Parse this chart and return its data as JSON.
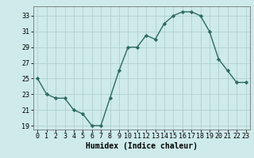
{
  "x": [
    0,
    1,
    2,
    3,
    4,
    5,
    6,
    7,
    8,
    9,
    10,
    11,
    12,
    13,
    14,
    15,
    16,
    17,
    18,
    19,
    20,
    21,
    22,
    23
  ],
  "y": [
    25,
    23,
    22.5,
    22.5,
    21,
    20.5,
    19,
    19,
    22.5,
    26,
    29,
    29,
    30.5,
    30,
    32,
    33,
    33.5,
    33.5,
    33,
    31,
    27.5,
    26,
    24.5,
    24.5
  ],
  "line_color": "#2d6b5e",
  "marker": "D",
  "marker_size": 2.2,
  "bg_color": "#ceeaea",
  "grid_color": "#b0d0d0",
  "xlabel": "Humidex (Indice chaleur)",
  "xlim": [
    -0.5,
    23.5
  ],
  "ylim": [
    18.5,
    34.2
  ],
  "yticks": [
    19,
    21,
    23,
    25,
    27,
    29,
    31,
    33
  ],
  "xticks": [
    0,
    1,
    2,
    3,
    4,
    5,
    6,
    7,
    8,
    9,
    10,
    11,
    12,
    13,
    14,
    15,
    16,
    17,
    18,
    19,
    20,
    21,
    22,
    23
  ],
  "xtick_labels": [
    "0",
    "1",
    "2",
    "3",
    "4",
    "5",
    "6",
    "7",
    "8",
    "9",
    "10",
    "11",
    "12",
    "13",
    "14",
    "15",
    "16",
    "17",
    "18",
    "19",
    "20",
    "21",
    "22",
    "23"
  ],
  "xlabel_fontsize": 7.0,
  "tick_fontsize": 6.0,
  "line_width": 1.0
}
